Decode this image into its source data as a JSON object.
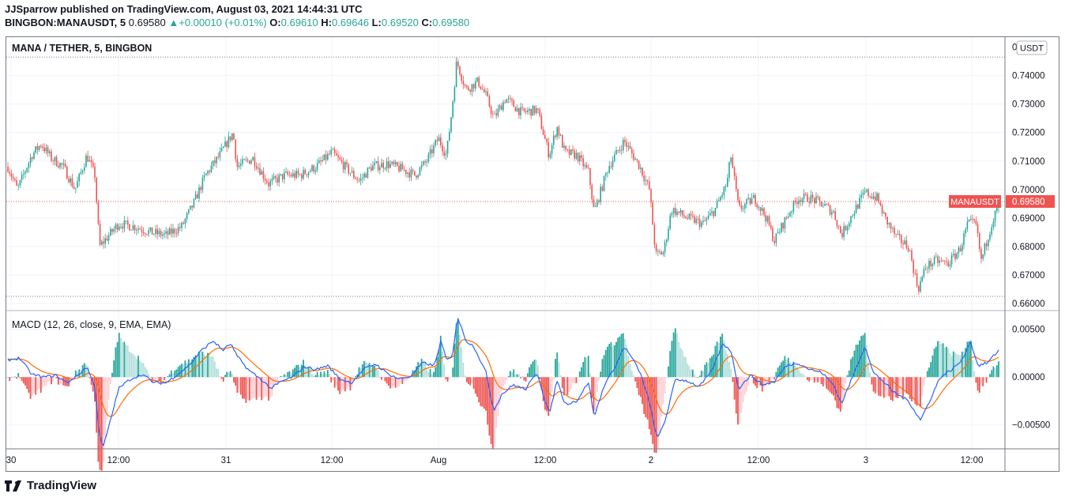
{
  "header": {
    "publisher_line": "JJSparrow published on TradingView.com, August 03, 2021 14:44:31 UTC",
    "symbol": "BINGBON:MANAUSDT, 5",
    "last": "0.69580",
    "change_arrow": "▲",
    "change": "+0.00010 (+0.01%)",
    "o_label": "O:",
    "o_value": "0.69610",
    "h_label": "H:",
    "h_value": "0.69646",
    "l_label": "L:",
    "l_value": "0.69520",
    "c_label": "C:",
    "c_value": "0.69580"
  },
  "footer": {
    "brand": "TradingView"
  },
  "colors": {
    "up": "#26a69a",
    "down": "#ef5350",
    "macd_line": "#2962ff",
    "signal_line": "#ff6d00",
    "price_line": "#ef5350"
  },
  "chart_data": [
    {
      "type": "candlestick",
      "title": "MANA / TETHER, 5, BINGBON",
      "currency": "USDT",
      "current_price_label": "MANAUSDT",
      "current_price": 0.6958,
      "yticks": [
        "0.74000",
        "0.73000",
        "0.72000",
        "0.71000",
        "0.70000",
        "0.69000",
        "0.68000",
        "0.67000",
        "0.66000"
      ],
      "ytick_partial": "0.75000",
      "ylim": [
        0.6575,
        0.7535
      ],
      "range_high": 0.7465,
      "range_low": 0.6625,
      "xticks": [
        "30",
        "12:00",
        "31",
        "12:00",
        "Aug",
        "12:00",
        "2",
        "12:00",
        "3",
        "12:00"
      ],
      "approx_path": [
        [
          0,
          0.708
        ],
        [
          12,
          0.7
        ],
        [
          30,
          0.712
        ],
        [
          42,
          0.716
        ],
        [
          55,
          0.711
        ],
        [
          70,
          0.708
        ],
        [
          85,
          0.7
        ],
        [
          100,
          0.712
        ],
        [
          110,
          0.705
        ],
        [
          116,
          0.68
        ],
        [
          125,
          0.683
        ],
        [
          140,
          0.688
        ],
        [
          160,
          0.687
        ],
        [
          180,
          0.685
        ],
        [
          200,
          0.684
        ],
        [
          220,
          0.687
        ],
        [
          235,
          0.695
        ],
        [
          250,
          0.705
        ],
        [
          268,
          0.712
        ],
        [
          285,
          0.72
        ],
        [
          290,
          0.708
        ],
        [
          310,
          0.711
        ],
        [
          330,
          0.702
        ],
        [
          350,
          0.705
        ],
        [
          370,
          0.705
        ],
        [
          390,
          0.708
        ],
        [
          410,
          0.713
        ],
        [
          430,
          0.707
        ],
        [
          445,
          0.703
        ],
        [
          460,
          0.708
        ],
        [
          480,
          0.709
        ],
        [
          500,
          0.707
        ],
        [
          515,
          0.705
        ],
        [
          530,
          0.71
        ],
        [
          545,
          0.718
        ],
        [
          555,
          0.712
        ],
        [
          562,
          0.728
        ],
        [
          568,
          0.745
        ],
        [
          580,
          0.735
        ],
        [
          595,
          0.738
        ],
        [
          605,
          0.733
        ],
        [
          615,
          0.725
        ],
        [
          630,
          0.732
        ],
        [
          650,
          0.727
        ],
        [
          670,
          0.728
        ],
        [
          685,
          0.712
        ],
        [
          695,
          0.722
        ],
        [
          705,
          0.713
        ],
        [
          720,
          0.712
        ],
        [
          735,
          0.706
        ],
        [
          742,
          0.692
        ],
        [
          760,
          0.708
        ],
        [
          780,
          0.717
        ],
        [
          800,
          0.708
        ],
        [
          812,
          0.7
        ],
        [
          820,
          0.677
        ],
        [
          830,
          0.678
        ],
        [
          840,
          0.693
        ],
        [
          860,
          0.69
        ],
        [
          880,
          0.688
        ],
        [
          895,
          0.693
        ],
        [
          910,
          0.702
        ],
        [
          915,
          0.712
        ],
        [
          925,
          0.693
        ],
        [
          945,
          0.697
        ],
        [
          960,
          0.69
        ],
        [
          970,
          0.682
        ],
        [
          985,
          0.69
        ],
        [
          1000,
          0.697
        ],
        [
          1015,
          0.697
        ],
        [
          1030,
          0.695
        ],
        [
          1045,
          0.692
        ],
        [
          1055,
          0.684
        ],
        [
          1070,
          0.692
        ],
        [
          1085,
          0.699
        ],
        [
          1100,
          0.697
        ],
        [
          1110,
          0.69
        ],
        [
          1125,
          0.683
        ],
        [
          1140,
          0.68
        ],
        [
          1152,
          0.665
        ],
        [
          1162,
          0.673
        ],
        [
          1175,
          0.675
        ],
        [
          1190,
          0.674
        ],
        [
          1205,
          0.679
        ],
        [
          1215,
          0.688
        ],
        [
          1225,
          0.688
        ],
        [
          1232,
          0.675
        ],
        [
          1245,
          0.688
        ],
        [
          1256,
          0.6958
        ]
      ]
    },
    {
      "type": "line+histogram",
      "title": "MACD (12, 26, close, 9, EMA, EMA)",
      "yticks": [
        "0.00500",
        "0.00000",
        "−0.00500"
      ],
      "ylim": [
        -0.0075,
        0.0063
      ],
      "macd_points": [
        [
          0,
          0.0018
        ],
        [
          15,
          0.002
        ],
        [
          30,
          0.0003
        ],
        [
          45,
          0.0
        ],
        [
          60,
          0.0002
        ],
        [
          75,
          -0.0006
        ],
        [
          90,
          0.0003
        ],
        [
          100,
          0.0011
        ],
        [
          110,
          -0.001
        ],
        [
          115,
          -0.0055
        ],
        [
          120,
          -0.0075
        ],
        [
          130,
          -0.0045
        ],
        [
          140,
          -0.0012
        ],
        [
          155,
          -0.0002
        ],
        [
          170,
          0.0003
        ],
        [
          185,
          -0.0006
        ],
        [
          200,
          -0.0006
        ],
        [
          215,
          0.0003
        ],
        [
          230,
          0.0013
        ],
        [
          245,
          0.0028
        ],
        [
          260,
          0.0038
        ],
        [
          272,
          0.0028
        ],
        [
          282,
          0.0035
        ],
        [
          290,
          0.0022
        ],
        [
          305,
          0.0007
        ],
        [
          320,
          -0.0002
        ],
        [
          333,
          -0.0012
        ],
        [
          345,
          -0.0005
        ],
        [
          360,
          0.0
        ],
        [
          375,
          0.0011
        ],
        [
          390,
          0.0008
        ],
        [
          405,
          0.0012
        ],
        [
          420,
          -0.0002
        ],
        [
          435,
          -0.0006
        ],
        [
          450,
          0.0008
        ],
        [
          465,
          0.0014
        ],
        [
          480,
          0.0004
        ],
        [
          495,
          -0.0002
        ],
        [
          510,
          0.0001
        ],
        [
          525,
          0.0015
        ],
        [
          540,
          0.0012
        ],
        [
          548,
          0.0038
        ],
        [
          555,
          0.0018
        ],
        [
          562,
          0.002
        ],
        [
          569,
          0.0063
        ],
        [
          580,
          0.0038
        ],
        [
          590,
          0.0032
        ],
        [
          605,
          0.0005
        ],
        [
          615,
          -0.0035
        ],
        [
          625,
          -0.0018
        ],
        [
          640,
          -0.0008
        ],
        [
          655,
          -0.0013
        ],
        [
          670,
          0.0005
        ],
        [
          680,
          -0.0025
        ],
        [
          686,
          -0.0038
        ],
        [
          695,
          -0.0003
        ],
        [
          705,
          -0.0028
        ],
        [
          720,
          -0.0025
        ],
        [
          735,
          -0.0005
        ],
        [
          742,
          -0.0042
        ],
        [
          755,
          -0.0008
        ],
        [
          770,
          0.0013
        ],
        [
          780,
          0.0032
        ],
        [
          790,
          0.002
        ],
        [
          800,
          0.0005
        ],
        [
          810,
          -0.002
        ],
        [
          822,
          -0.0065
        ],
        [
          832,
          -0.0045
        ],
        [
          845,
          -0.0002
        ],
        [
          860,
          -0.0004
        ],
        [
          875,
          -0.001
        ],
        [
          890,
          0.0005
        ],
        [
          905,
          0.0035
        ],
        [
          915,
          0.0028
        ],
        [
          925,
          -0.0012
        ],
        [
          940,
          0.0002
        ],
        [
          955,
          -0.0008
        ],
        [
          970,
          -0.0005
        ],
        [
          985,
          0.0012
        ],
        [
          1000,
          0.0015
        ],
        [
          1015,
          0.0008
        ],
        [
          1030,
          0.0005
        ],
        [
          1045,
          -0.0008
        ],
        [
          1055,
          -0.0028
        ],
        [
          1070,
          0.0002
        ],
        [
          1085,
          0.0033
        ],
        [
          1095,
          0.0005
        ],
        [
          1105,
          -0.0002
        ],
        [
          1120,
          -0.0015
        ],
        [
          1140,
          -0.0025
        ],
        [
          1155,
          -0.0045
        ],
        [
          1165,
          -0.0028
        ],
        [
          1180,
          0.0
        ],
        [
          1195,
          0.0008
        ],
        [
          1208,
          0.0018
        ],
        [
          1218,
          0.0038
        ],
        [
          1228,
          0.0012
        ],
        [
          1240,
          0.0015
        ],
        [
          1256,
          0.003
        ]
      ]
    }
  ]
}
